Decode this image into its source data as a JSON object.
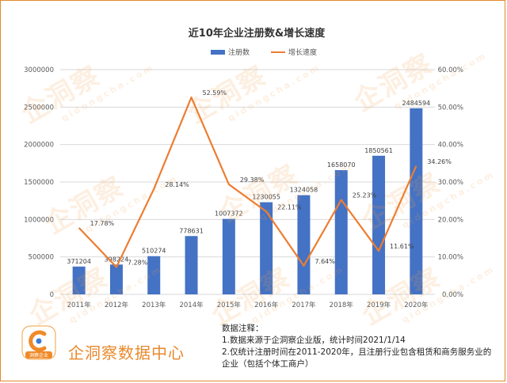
{
  "chart_data": {
    "type": "bar+line",
    "title": "近10年企业注册数&增长速度",
    "categories": [
      "2011年",
      "2012年",
      "2013年",
      "2014年",
      "2015年",
      "2016年",
      "2017年",
      "2018年",
      "2019年",
      "2020年"
    ],
    "series": [
      {
        "name": "注册数",
        "kind": "bar",
        "axis": "left",
        "values": [
          371204,
          398224,
          510274,
          778631,
          1007372,
          1230055,
          1324058,
          1658070,
          1850561,
          2484594
        ],
        "labels": [
          "371204",
          "398224",
          "510274",
          "778631",
          "1007372",
          "1230055",
          "1324058",
          "1658070",
          "1850561",
          "2484594"
        ]
      },
      {
        "name": "增长速度",
        "kind": "line",
        "axis": "right",
        "values": [
          17.78,
          7.28,
          28.14,
          52.59,
          29.38,
          22.11,
          7.64,
          25.23,
          11.61,
          34.26
        ],
        "labels": [
          "17.78%",
          "7.28%",
          "28.14%",
          "52.59%",
          "29.38%",
          "22.11%",
          "7.64%",
          "25.23%",
          "11.61%",
          "34.26%"
        ]
      }
    ],
    "y_left": {
      "min": 0,
      "max": 3000000,
      "ticks": [
        "0",
        "500000",
        "1000000",
        "1500000",
        "2000000",
        "2500000",
        "3000000"
      ]
    },
    "y_right": {
      "min": 0,
      "max": 60,
      "ticks": [
        "0.00%",
        "10.00%",
        "20.00%",
        "30.00%",
        "40.00%",
        "50.00%",
        "60.00%"
      ]
    },
    "grid": true,
    "legend": "top-center",
    "colors": {
      "bar": "#4472c4",
      "line": "#ed7d31"
    }
  },
  "watermark": {
    "text": "企洞察",
    "sub": "qidongcha.com"
  },
  "footer": {
    "logo_label": "洞察企业",
    "brand": "企洞察数据中心",
    "notes_title": "数据注释：",
    "note1": "1.数据来源于企洞察企业版，统计时间2021/1/14",
    "note2": "2.仅统计注册时间在2011-2020年，且注册行业包含租赁和商务服务业的企业（包括个体工商户）"
  }
}
